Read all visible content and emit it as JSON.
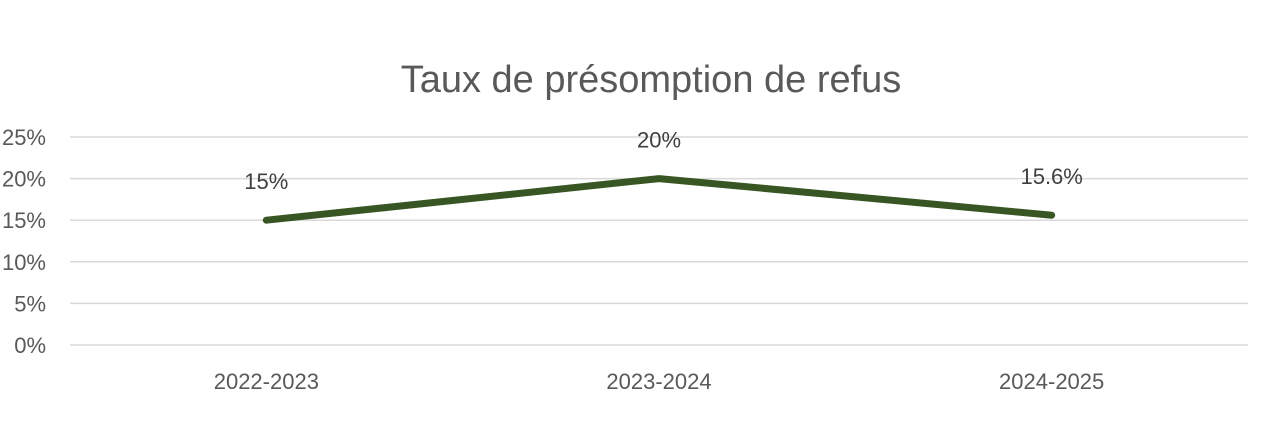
{
  "chart_data": {
    "type": "line",
    "title": "Taux de présomption de refus",
    "xlabel": "",
    "ylabel": "",
    "categories": [
      "2022-2023",
      "2023-2024",
      "2024-2025"
    ],
    "series": [
      {
        "values": [
          15,
          20,
          15.6
        ],
        "data_labels": [
          "15%",
          "20%",
          "15.6%"
        ]
      }
    ],
    "ylim": [
      0,
      25
    ],
    "y_ticks": [
      0,
      5,
      10,
      15,
      20,
      25
    ],
    "y_tick_labels": [
      "0%",
      "5%",
      "10%",
      "15%",
      "20%",
      "25%"
    ],
    "grid": true,
    "legend": "none",
    "colors": {
      "line": "#375623",
      "grid": "#d9d9d9",
      "text": "#595959"
    }
  }
}
